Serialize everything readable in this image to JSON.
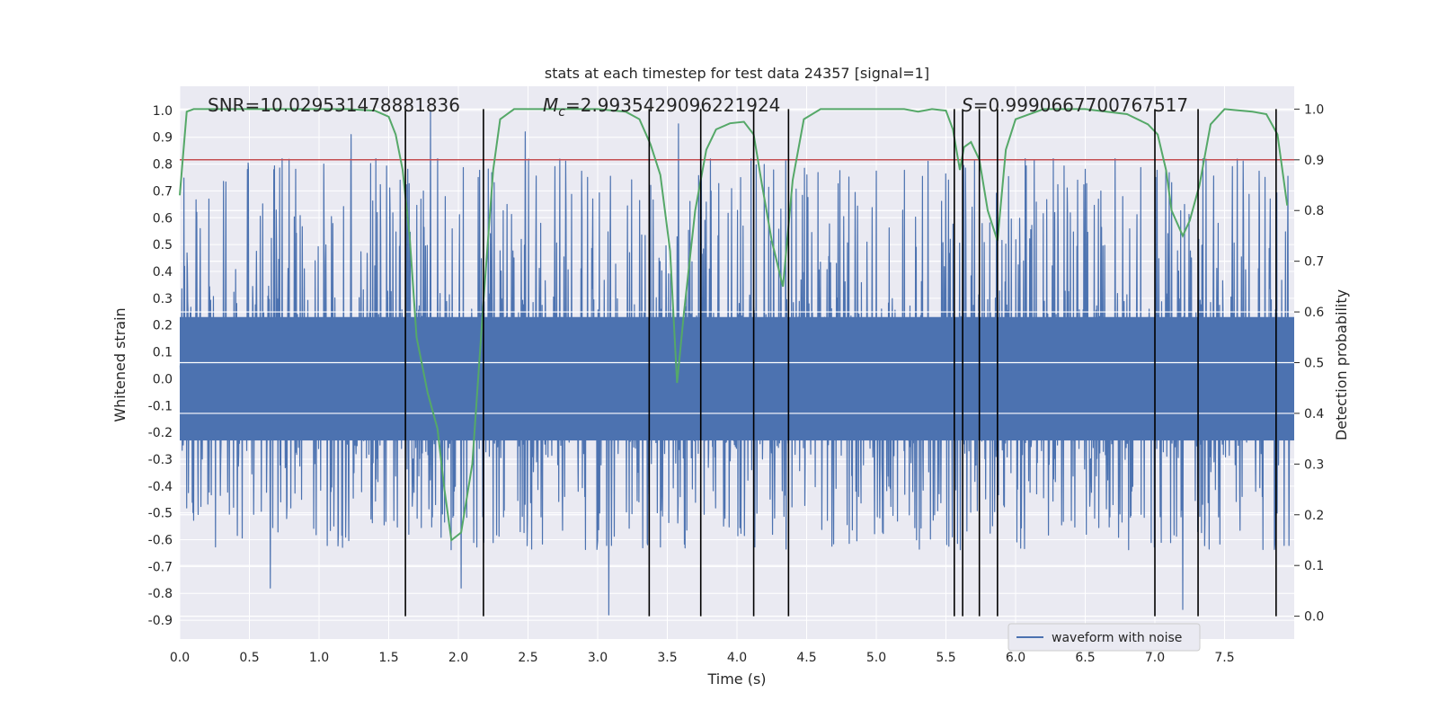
{
  "chart_data": {
    "type": "line",
    "title": "stats at each timestep for test data 24357 [signal=1]",
    "xlabel": "Time (s)",
    "ylabel_left": "Whitened strain",
    "ylabel_right": "Detection probability",
    "xlim": [
      0.0,
      8.0
    ],
    "ylim_left": [
      -0.97,
      1.09
    ],
    "ylim_right": [
      -0.045,
      1.045
    ],
    "x_ticks": [
      "0.0",
      "0.5",
      "1.0",
      "1.5",
      "2.0",
      "2.5",
      "3.0",
      "3.5",
      "4.0",
      "4.5",
      "5.0",
      "5.5",
      "6.0",
      "6.5",
      "7.0",
      "7.5"
    ],
    "y_ticks_left": [
      "1.0",
      "0.9",
      "0.8",
      "0.7",
      "0.6",
      "0.5",
      "0.4",
      "0.3",
      "0.2",
      "0.1",
      "0.0",
      "-0.1",
      "-0.2",
      "-0.3",
      "-0.4",
      "-0.5",
      "-0.6",
      "-0.7",
      "-0.8",
      "-0.9"
    ],
    "y_ticks_right": [
      "1.0",
      "0.9",
      "0.8",
      "0.7",
      "0.6",
      "0.5",
      "0.4",
      "0.3",
      "0.2",
      "0.1",
      "0.0"
    ],
    "annotations": {
      "snr": "SNR=10.029531478881836",
      "mc_symbol": "M",
      "mc_sub": "c",
      "mc_value": "=2.9935429096221924",
      "s_symbol": "S",
      "s_value": "=0.9990667700767517"
    },
    "legend": {
      "label": "waveform with noise",
      "location": "lower-right"
    },
    "threshold_probability": 0.9,
    "vertical_lines_x": [
      1.62,
      2.18,
      3.37,
      3.74,
      4.12,
      4.37,
      5.56,
      5.62,
      5.74,
      5.87,
      7.0,
      7.31,
      7.87
    ],
    "probability_series": {
      "name": "Detection probability",
      "x": [
        0.0,
        0.05,
        0.1,
        0.2,
        0.4,
        0.6,
        0.8,
        1.0,
        1.2,
        1.4,
        1.5,
        1.55,
        1.6,
        1.65,
        1.7,
        1.78,
        1.85,
        1.9,
        1.95,
        2.02,
        2.1,
        2.18,
        2.25,
        2.3,
        2.4,
        2.6,
        2.8,
        3.0,
        3.2,
        3.3,
        3.38,
        3.45,
        3.52,
        3.57,
        3.62,
        3.7,
        3.78,
        3.85,
        3.95,
        4.05,
        4.12,
        4.18,
        4.25,
        4.33,
        4.4,
        4.48,
        4.6,
        4.8,
        5.0,
        5.2,
        5.3,
        5.4,
        5.5,
        5.55,
        5.6,
        5.63,
        5.68,
        5.74,
        5.8,
        5.87,
        5.93,
        6.0,
        6.2,
        6.5,
        6.8,
        6.95,
        7.02,
        7.08,
        7.12,
        7.2,
        7.25,
        7.32,
        7.4,
        7.5,
        7.7,
        7.8,
        7.88,
        7.95
      ],
      "y": [
        0.83,
        0.995,
        1.0,
        1.0,
        1.0,
        1.0,
        1.0,
        1.0,
        1.0,
        0.997,
        0.985,
        0.95,
        0.88,
        0.75,
        0.55,
        0.44,
        0.37,
        0.25,
        0.15,
        0.165,
        0.3,
        0.62,
        0.88,
        0.98,
        1.0,
        1.0,
        1.0,
        1.0,
        0.995,
        0.98,
        0.93,
        0.87,
        0.72,
        0.46,
        0.6,
        0.8,
        0.92,
        0.96,
        0.972,
        0.975,
        0.95,
        0.85,
        0.74,
        0.65,
        0.86,
        0.98,
        1.0,
        1.0,
        1.0,
        1.0,
        0.995,
        1.0,
        0.997,
        0.96,
        0.88,
        0.925,
        0.935,
        0.9,
        0.8,
        0.74,
        0.92,
        0.98,
        1.0,
        1.0,
        0.99,
        0.97,
        0.95,
        0.88,
        0.8,
        0.75,
        0.78,
        0.85,
        0.97,
        1.0,
        0.995,
        0.99,
        0.95,
        0.81
      ]
    },
    "waveform_series": {
      "name": "waveform with noise",
      "x_range": [
        0.0,
        7.97
      ],
      "noise_amplitude": 0.32,
      "spike_range": [
        0.4,
        1.0
      ],
      "notable_spikes": [
        {
          "x": 1.8,
          "y": 1.0
        },
        {
          "x": 1.23,
          "y": 0.91
        },
        {
          "x": 3.58,
          "y": 0.95
        },
        {
          "x": 2.48,
          "y": 0.92
        },
        {
          "x": 3.08,
          "y": -0.88
        },
        {
          "x": 7.2,
          "y": -0.86
        },
        {
          "x": 0.65,
          "y": -0.78
        },
        {
          "x": 2.02,
          "y": -0.78
        }
      ]
    },
    "colors": {
      "waveform": "#4c72b0",
      "probability": "#55a868",
      "threshold": "#c44e52",
      "event_lines": "#000000",
      "plot_background": "#eaeaf2",
      "grid": "#ffffff"
    }
  }
}
